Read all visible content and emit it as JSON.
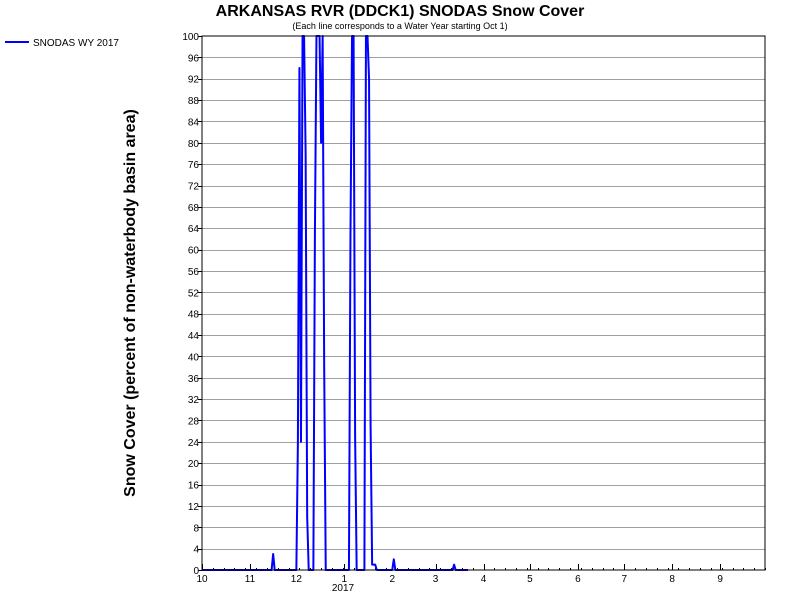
{
  "chart_data": {
    "type": "line",
    "title": "ARKANSAS RVR (DDCK1) SNODAS Snow Cover",
    "subtitle": "(Each line corresponds to a Water Year starting Oct 1)",
    "ylabel": "Snow Cover (percent of non-waterbody basin area)",
    "ylim": [
      0,
      100
    ],
    "yticks": [
      0,
      4,
      8,
      12,
      16,
      20,
      24,
      28,
      32,
      36,
      40,
      44,
      48,
      52,
      56,
      60,
      64,
      68,
      72,
      76,
      80,
      84,
      88,
      92,
      96,
      100
    ],
    "xlim": [
      "2016-10-01",
      "2017-09-30"
    ],
    "xticks": [
      {
        "date": "2016-10-01",
        "label": "10"
      },
      {
        "date": "2016-11-01",
        "label": "11"
      },
      {
        "date": "2016-12-01",
        "label": "12"
      },
      {
        "date": "2017-01-01",
        "label": "1"
      },
      {
        "date": "2017-02-01",
        "label": "2"
      },
      {
        "date": "2017-03-01",
        "label": "3"
      },
      {
        "date": "2017-04-01",
        "label": "4"
      },
      {
        "date": "2017-05-01",
        "label": "5"
      },
      {
        "date": "2017-06-01",
        "label": "6"
      },
      {
        "date": "2017-07-01",
        "label": "7"
      },
      {
        "date": "2017-08-01",
        "label": "8"
      },
      {
        "date": "2017-09-01",
        "label": "9"
      }
    ],
    "year_label": "2017",
    "grid": true,
    "legend": "top-left",
    "series": [
      {
        "name": "SNODAS WY 2017",
        "color": "#0000ff",
        "points": [
          [
            "2016-10-01",
            0
          ],
          [
            "2016-11-15",
            0
          ],
          [
            "2016-11-16",
            3
          ],
          [
            "2016-11-17",
            0
          ],
          [
            "2016-12-01",
            0
          ],
          [
            "2016-12-02",
            24
          ],
          [
            "2016-12-03",
            94
          ],
          [
            "2016-12-04",
            24
          ],
          [
            "2016-12-05",
            100
          ],
          [
            "2016-12-06",
            100
          ],
          [
            "2016-12-07",
            78
          ],
          [
            "2016-12-08",
            10
          ],
          [
            "2016-12-09",
            0
          ],
          [
            "2016-12-12",
            0
          ],
          [
            "2016-12-13",
            63
          ],
          [
            "2016-12-14",
            100
          ],
          [
            "2016-12-16",
            100
          ],
          [
            "2016-12-17",
            80
          ],
          [
            "2016-12-18",
            100
          ],
          [
            "2016-12-19",
            38
          ],
          [
            "2016-12-20",
            0
          ],
          [
            "2017-01-04",
            0
          ],
          [
            "2017-01-05",
            63
          ],
          [
            "2017-01-06",
            100
          ],
          [
            "2017-01-07",
            100
          ],
          [
            "2017-01-08",
            25
          ],
          [
            "2017-01-09",
            0
          ],
          [
            "2017-01-14",
            0
          ],
          [
            "2017-01-15",
            100
          ],
          [
            "2017-01-16",
            100
          ],
          [
            "2017-01-17",
            92
          ],
          [
            "2017-01-18",
            27
          ],
          [
            "2017-01-19",
            1
          ],
          [
            "2017-01-21",
            1
          ],
          [
            "2017-01-22",
            0
          ],
          [
            "2017-02-01",
            0
          ],
          [
            "2017-02-02",
            2
          ],
          [
            "2017-02-03",
            0
          ],
          [
            "2017-03-12",
            0
          ],
          [
            "2017-03-13",
            1
          ],
          [
            "2017-03-14",
            0
          ],
          [
            "2017-03-22",
            0
          ]
        ]
      }
    ]
  }
}
